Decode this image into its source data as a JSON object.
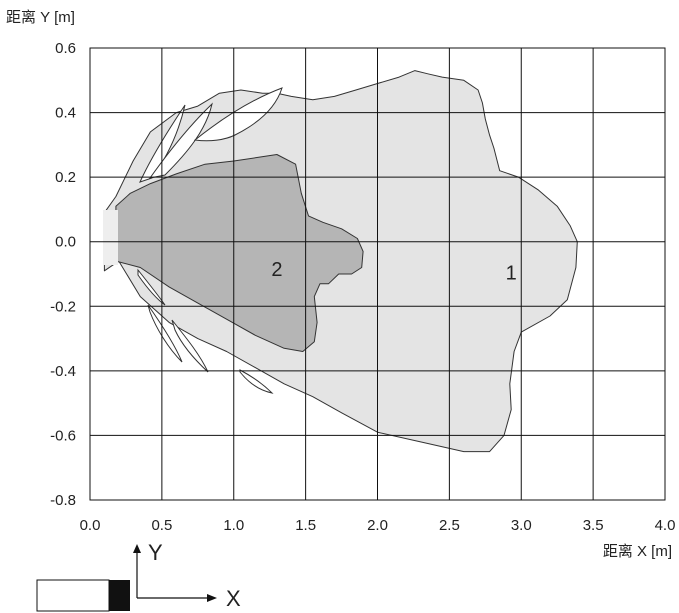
{
  "chart_data": {
    "type": "area",
    "xlabel": "距离 X [m]",
    "ylabel": "距离 Y [m]",
    "xlim": [
      0.0,
      4.0
    ],
    "ylim": [
      -0.8,
      0.6
    ],
    "xticks": [
      "0.0",
      "0.5",
      "1.0",
      "1.5",
      "2.0",
      "2.5",
      "3.0",
      "3.5",
      "4.0"
    ],
    "yticks": [
      "0.6",
      "0.4",
      "0.2",
      "0.0",
      "-0.2",
      "-0.4",
      "-0.6",
      "-0.8"
    ],
    "grid": true,
    "series": [
      {
        "name": "1",
        "fill": "#e4e4e4",
        "points": [
          [
            0.1,
            0.09
          ],
          [
            0.18,
            0.14
          ],
          [
            0.3,
            0.25
          ],
          [
            0.42,
            0.34
          ],
          [
            0.6,
            0.4
          ],
          [
            0.75,
            0.42
          ],
          [
            0.9,
            0.46
          ],
          [
            1.05,
            0.47
          ],
          [
            1.2,
            0.46
          ],
          [
            1.3,
            0.46
          ],
          [
            1.4,
            0.45
          ],
          [
            1.55,
            0.44
          ],
          [
            1.7,
            0.45
          ],
          [
            1.85,
            0.47
          ],
          [
            2.0,
            0.49
          ],
          [
            2.15,
            0.51
          ],
          [
            2.26,
            0.53
          ],
          [
            2.35,
            0.52
          ],
          [
            2.45,
            0.51
          ],
          [
            2.6,
            0.5
          ],
          [
            2.7,
            0.47
          ],
          [
            2.73,
            0.43
          ],
          [
            2.75,
            0.38
          ],
          [
            2.78,
            0.33
          ],
          [
            2.81,
            0.29
          ],
          [
            2.85,
            0.22
          ],
          [
            2.98,
            0.2
          ],
          [
            3.12,
            0.16
          ],
          [
            3.25,
            0.11
          ],
          [
            3.34,
            0.05
          ],
          [
            3.39,
            0.0
          ],
          [
            3.38,
            -0.08
          ],
          [
            3.32,
            -0.18
          ],
          [
            3.2,
            -0.23
          ],
          [
            3.0,
            -0.28
          ],
          [
            2.95,
            -0.34
          ],
          [
            2.92,
            -0.44
          ],
          [
            2.93,
            -0.52
          ],
          [
            2.88,
            -0.6
          ],
          [
            2.78,
            -0.65
          ],
          [
            2.6,
            -0.65
          ],
          [
            2.3,
            -0.62
          ],
          [
            2.0,
            -0.59
          ],
          [
            1.75,
            -0.53
          ],
          [
            1.55,
            -0.48
          ],
          [
            1.35,
            -0.44
          ],
          [
            1.15,
            -0.39
          ],
          [
            0.95,
            -0.34
          ],
          [
            0.75,
            -0.3
          ],
          [
            0.55,
            -0.25
          ],
          [
            0.35,
            -0.17
          ],
          [
            0.2,
            -0.06
          ],
          [
            0.1,
            -0.09
          ]
        ]
      },
      {
        "name": "2",
        "fill": "#b5b5b5",
        "points": [
          [
            0.18,
            0.11
          ],
          [
            0.28,
            0.15
          ],
          [
            0.42,
            0.18
          ],
          [
            0.6,
            0.21
          ],
          [
            0.8,
            0.24
          ],
          [
            1.0,
            0.25
          ],
          [
            1.15,
            0.26
          ],
          [
            1.3,
            0.27
          ],
          [
            1.43,
            0.24
          ],
          [
            1.47,
            0.15
          ],
          [
            1.52,
            0.08
          ],
          [
            1.62,
            0.06
          ],
          [
            1.75,
            0.04
          ],
          [
            1.86,
            0.01
          ],
          [
            1.9,
            -0.03
          ],
          [
            1.89,
            -0.08
          ],
          [
            1.82,
            -0.1
          ],
          [
            1.73,
            -0.1
          ],
          [
            1.66,
            -0.13
          ],
          [
            1.6,
            -0.13
          ],
          [
            1.56,
            -0.17
          ],
          [
            1.58,
            -0.25
          ],
          [
            1.56,
            -0.31
          ],
          [
            1.48,
            -0.34
          ],
          [
            1.35,
            -0.33
          ],
          [
            1.15,
            -0.29
          ],
          [
            0.95,
            -0.24
          ],
          [
            0.75,
            -0.19
          ],
          [
            0.55,
            -0.14
          ],
          [
            0.35,
            -0.08
          ],
          [
            0.18,
            -0.06
          ]
        ]
      }
    ],
    "annotations": [
      {
        "text": "1",
        "x": 2.93,
        "y": -0.1
      },
      {
        "text": "2",
        "x": 1.3,
        "y": -0.09
      }
    ]
  },
  "diagram": {
    "y_dir": "Y",
    "x_dir": "X"
  }
}
